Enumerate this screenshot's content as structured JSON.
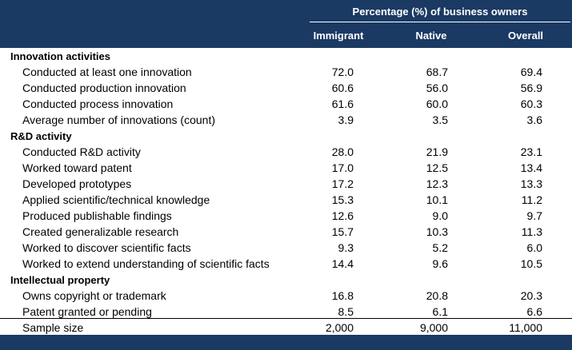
{
  "header": {
    "span_title": "Percentage (%) of business owners",
    "columns": [
      "Immigrant",
      "Native",
      "Overall"
    ]
  },
  "rows": [
    {
      "type": "section",
      "label": "Innovation activities"
    },
    {
      "type": "item",
      "label": "Conducted at least one innovation",
      "values": [
        "72.0",
        "68.7",
        "69.4"
      ]
    },
    {
      "type": "item",
      "label": "Conducted production innovation",
      "values": [
        "60.6",
        "56.0",
        "56.9"
      ]
    },
    {
      "type": "item",
      "label": "Conducted process innovation",
      "values": [
        "61.6",
        "60.0",
        "60.3"
      ]
    },
    {
      "type": "item",
      "label": "Average number of innovations (count)",
      "values": [
        "3.9",
        "3.5",
        "3.6"
      ]
    },
    {
      "type": "section",
      "label": "R&D activity"
    },
    {
      "type": "item",
      "label": "Conducted R&D activity",
      "values": [
        "28.0",
        "21.9",
        "23.1"
      ]
    },
    {
      "type": "item",
      "label": "Worked toward patent",
      "values": [
        "17.0",
        "12.5",
        "13.4"
      ]
    },
    {
      "type": "item",
      "label": "Developed prototypes",
      "values": [
        "17.2",
        "12.3",
        "13.3"
      ]
    },
    {
      "type": "item",
      "label": "Applied scientific/technical knowledge",
      "values": [
        "15.3",
        "10.1",
        "11.2"
      ]
    },
    {
      "type": "item",
      "label": "Produced publishable findings",
      "values": [
        "12.6",
        "9.0",
        "9.7"
      ]
    },
    {
      "type": "item",
      "label": "Created generalizable research",
      "values": [
        "15.7",
        "10.3",
        "11.3"
      ]
    },
    {
      "type": "item",
      "label": "Worked to discover scientific facts",
      "values": [
        "9.3",
        "5.2",
        "6.0"
      ]
    },
    {
      "type": "item",
      "label": "Worked to extend understanding of scientific facts",
      "values": [
        "14.4",
        "9.6",
        "10.5"
      ]
    },
    {
      "type": "section",
      "label": "Intellectual property"
    },
    {
      "type": "item",
      "label": "Owns copyright or trademark",
      "values": [
        "16.8",
        "20.8",
        "20.3"
      ]
    },
    {
      "type": "item",
      "label": "Patent granted or pending",
      "values": [
        "8.5",
        "6.1",
        "6.6"
      ]
    },
    {
      "type": "item",
      "label": "Sample size",
      "values": [
        "2,000",
        "9,000",
        "11,000"
      ]
    }
  ],
  "colors": {
    "header_bg": "#1b3a63",
    "header_text": "#ffffff"
  }
}
